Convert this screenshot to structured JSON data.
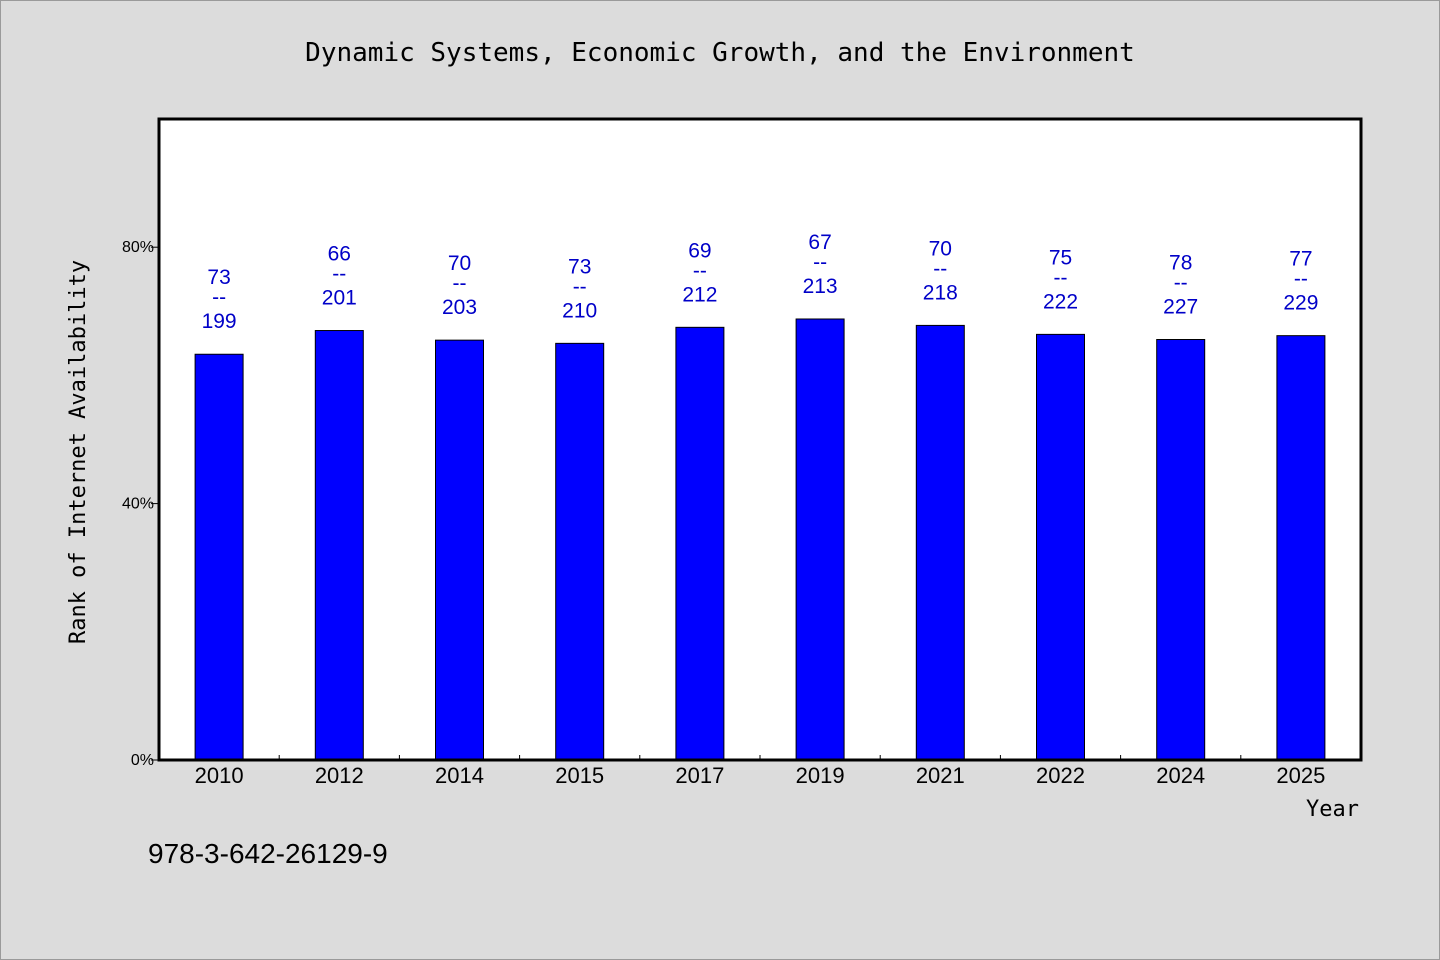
{
  "chart_data": {
    "type": "bar",
    "title": "Dynamic Systems, Economic Growth, and the Environment",
    "xlabel": "Year",
    "ylabel": "Rank of Internet Availability",
    "ylim": [
      0,
      100
    ],
    "y_ticks": [
      {
        "value": 0,
        "label": "0%"
      },
      {
        "value": 40,
        "label": "40%"
      },
      {
        "value": 80,
        "label": "80%"
      }
    ],
    "categories": [
      "2010",
      "2012",
      "2014",
      "2015",
      "2017",
      "2019",
      "2021",
      "2022",
      "2024",
      "2025"
    ],
    "values": [
      63.3,
      67.0,
      65.5,
      65.0,
      67.5,
      68.8,
      67.8,
      66.4,
      65.6,
      66.2
    ],
    "bar_labels": [
      {
        "top": "73",
        "sep": "--",
        "bottom": "199"
      },
      {
        "top": "66",
        "sep": "--",
        "bottom": "201"
      },
      {
        "top": "70",
        "sep": "--",
        "bottom": "203"
      },
      {
        "top": "73",
        "sep": "--",
        "bottom": "210"
      },
      {
        "top": "69",
        "sep": "--",
        "bottom": "212"
      },
      {
        "top": "67",
        "sep": "--",
        "bottom": "213"
      },
      {
        "top": "70",
        "sep": "--",
        "bottom": "218"
      },
      {
        "top": "75",
        "sep": "--",
        "bottom": "222"
      },
      {
        "top": "78",
        "sep": "--",
        "bottom": "227"
      },
      {
        "top": "77",
        "sep": "--",
        "bottom": "229"
      }
    ],
    "grid": false,
    "bar_color": "#0000ff",
    "label_color": "#0000c8",
    "background_color": "#dcdcdc",
    "plot_background_color": "#ffffff"
  },
  "footnote": "978-3-642-26129-9"
}
